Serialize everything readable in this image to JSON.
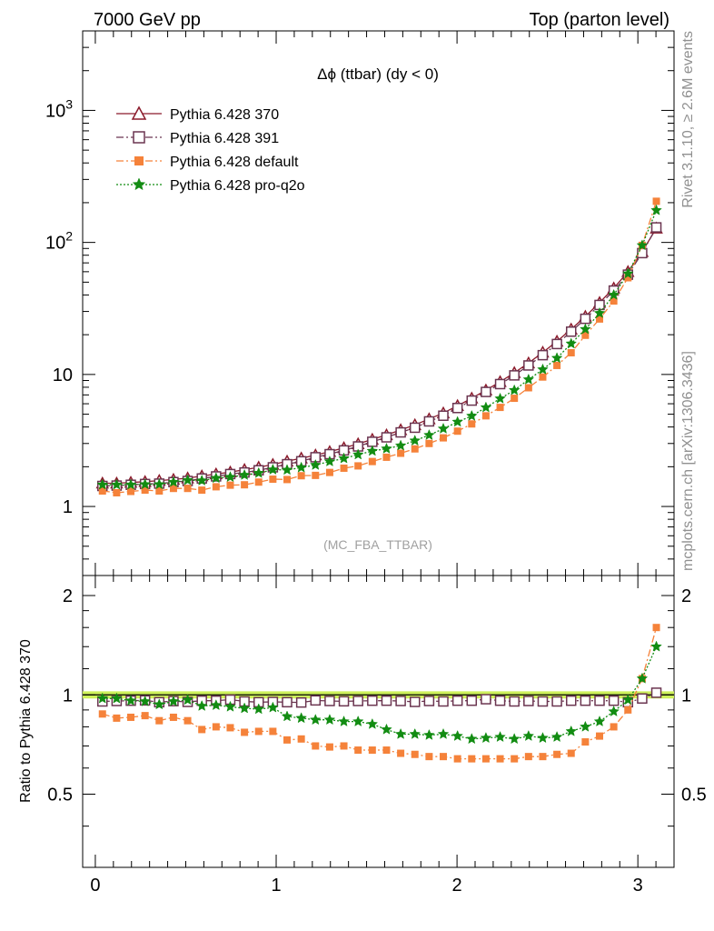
{
  "header": {
    "left": "7000 GeV pp",
    "right": "Top (parton level)"
  },
  "side_labels": {
    "rivet": "Rivet 3.1.10, ≥ 2.6M events",
    "mcplots": "mcplots.cern.ch [arXiv:1306.3436]"
  },
  "chart_data": {
    "type": "line",
    "title": "Δϕ (ttbar) (dy < 0)",
    "watermark": "(MC_FBA_TTBAR)",
    "xlabel": "",
    "ylabel_main": "",
    "ylabel_ratio": "Ratio to Pythia 6.428 370",
    "xlim": [
      -0.07,
      3.2
    ],
    "ylim_main": [
      0.3,
      4000
    ],
    "yscale_main": "log",
    "ylim_ratio": [
      0.3,
      2.3
    ],
    "yscale_ratio": "log",
    "x_ticks": [
      "0",
      "1",
      "2",
      "3"
    ],
    "y_ticks_main": [
      "1",
      "10",
      "10^2",
      "10^3"
    ],
    "y_ticks_ratio": [
      "0.5",
      "1",
      "2"
    ],
    "legend_position": "top-left",
    "reference_band": [
      0.975,
      1.025
    ],
    "x": [
      0.0393,
      0.1178,
      0.1963,
      0.2749,
      0.3534,
      0.432,
      0.5105,
      0.589,
      0.6676,
      0.7461,
      0.8247,
      0.9032,
      0.9817,
      1.0603,
      1.1388,
      1.2174,
      1.2959,
      1.3744,
      1.453,
      1.5315,
      1.6101,
      1.6886,
      1.7671,
      1.8457,
      1.9242,
      2.0028,
      2.0813,
      2.1598,
      2.2384,
      2.3169,
      2.3955,
      2.474,
      2.5525,
      2.6311,
      2.7096,
      2.7882,
      2.8667,
      2.9452,
      3.0238,
      3.1023
    ],
    "series": [
      {
        "name": "Pythia 6.428 370",
        "color": "#8b1a2b",
        "marker": "triangle-open",
        "line": "solid",
        "values": [
          1.5,
          1.5,
          1.52,
          1.54,
          1.57,
          1.6,
          1.64,
          1.7,
          1.76,
          1.82,
          1.9,
          1.98,
          2.08,
          2.2,
          2.32,
          2.45,
          2.6,
          2.78,
          2.98,
          3.22,
          3.48,
          3.8,
          4.15,
          4.6,
          5.1,
          5.8,
          6.6,
          7.6,
          8.8,
          10.3,
          12.2,
          14.7,
          17.8,
          22.0,
          27.5,
          35.0,
          45.0,
          60.0,
          85.0,
          128.0
        ],
        "ratio": [
          1.0,
          1.0,
          1.0,
          1.0,
          1.0,
          1.0,
          1.0,
          1.0,
          1.0,
          1.0,
          1.0,
          1.0,
          1.0,
          1.0,
          1.0,
          1.0,
          1.0,
          1.0,
          1.0,
          1.0,
          1.0,
          1.0,
          1.0,
          1.0,
          1.0,
          1.0,
          1.0,
          1.0,
          1.0,
          1.0,
          1.0,
          1.0,
          1.0,
          1.0,
          1.0,
          1.0,
          1.0,
          1.0,
          1.0,
          1.0
        ]
      },
      {
        "name": "Pythia 6.428 391",
        "color": "#6b3550",
        "marker": "square-open",
        "line": "dashdot",
        "values": [
          1.43,
          1.44,
          1.46,
          1.48,
          1.49,
          1.53,
          1.56,
          1.63,
          1.69,
          1.76,
          1.81,
          1.88,
          1.98,
          2.09,
          2.2,
          2.36,
          2.49,
          2.66,
          2.85,
          3.09,
          3.34,
          3.64,
          3.95,
          4.41,
          4.87,
          5.57,
          6.34,
          7.37,
          8.45,
          9.84,
          11.7,
          14.0,
          17.0,
          21.1,
          26.4,
          33.6,
          43.2,
          57.0,
          83.0,
          130.0
        ],
        "ratio": [
          0.955,
          0.958,
          0.96,
          0.962,
          0.95,
          0.957,
          0.952,
          0.96,
          0.96,
          0.967,
          0.955,
          0.95,
          0.952,
          0.95,
          0.948,
          0.962,
          0.958,
          0.956,
          0.958,
          0.96,
          0.96,
          0.958,
          0.952,
          0.958,
          0.955,
          0.96,
          0.96,
          0.97,
          0.96,
          0.955,
          0.958,
          0.955,
          0.955,
          0.96,
          0.96,
          0.96,
          0.96,
          0.95,
          0.975,
          1.015
        ]
      },
      {
        "name": "Pythia 6.428 default",
        "color": "#f5823a",
        "marker": "square-filled",
        "line": "dashdot",
        "values": [
          1.31,
          1.27,
          1.3,
          1.33,
          1.31,
          1.37,
          1.37,
          1.33,
          1.41,
          1.45,
          1.46,
          1.53,
          1.61,
          1.6,
          1.71,
          1.72,
          1.81,
          1.95,
          2.03,
          2.19,
          2.36,
          2.53,
          2.73,
          3.0,
          3.31,
          3.72,
          4.22,
          4.86,
          5.63,
          6.6,
          7.93,
          9.56,
          11.7,
          14.6,
          19.8,
          26.3,
          36.0,
          54.0,
          95.0,
          205.0
        ],
        "ratio": [
          0.875,
          0.85,
          0.855,
          0.865,
          0.835,
          0.855,
          0.835,
          0.785,
          0.8,
          0.795,
          0.77,
          0.775,
          0.775,
          0.73,
          0.735,
          0.7,
          0.695,
          0.7,
          0.68,
          0.68,
          0.68,
          0.665,
          0.66,
          0.65,
          0.65,
          0.64,
          0.64,
          0.64,
          0.64,
          0.64,
          0.65,
          0.65,
          0.66,
          0.665,
          0.72,
          0.75,
          0.8,
          0.9,
          1.12,
          1.6
        ]
      },
      {
        "name": "Pythia 6.428 pro-q2o",
        "color": "#128c12",
        "marker": "star",
        "line": "dotted",
        "values": [
          1.46,
          1.46,
          1.46,
          1.47,
          1.47,
          1.53,
          1.58,
          1.57,
          1.64,
          1.67,
          1.73,
          1.79,
          1.9,
          1.89,
          1.97,
          2.06,
          2.19,
          2.31,
          2.47,
          2.63,
          2.74,
          2.89,
          3.15,
          3.47,
          3.88,
          4.37,
          4.85,
          5.62,
          6.56,
          7.59,
          9.15,
          10.9,
          13.3,
          17.1,
          22.0,
          29.1,
          40.0,
          58.0,
          95.0,
          175.0
        ],
        "ratio": [
          0.975,
          0.975,
          0.96,
          0.955,
          0.935,
          0.955,
          0.965,
          0.925,
          0.93,
          0.92,
          0.91,
          0.905,
          0.915,
          0.86,
          0.85,
          0.84,
          0.84,
          0.83,
          0.83,
          0.815,
          0.785,
          0.76,
          0.76,
          0.755,
          0.76,
          0.75,
          0.735,
          0.74,
          0.745,
          0.735,
          0.75,
          0.74,
          0.745,
          0.775,
          0.8,
          0.83,
          0.89,
          0.965,
          1.12,
          1.4
        ]
      }
    ]
  }
}
